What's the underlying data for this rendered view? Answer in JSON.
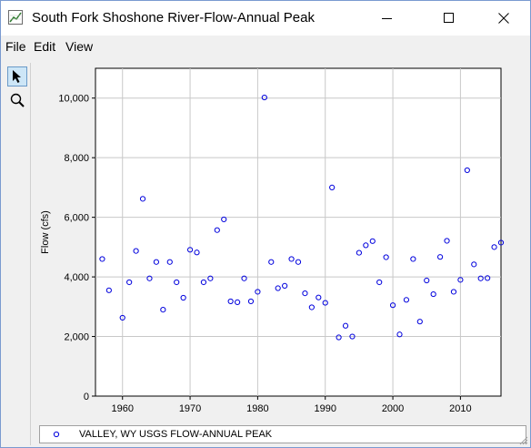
{
  "window": {
    "title": "South Fork Shoshone River-Flow-Annual Peak"
  },
  "menu": {
    "items": [
      "File",
      "Edit",
      "View"
    ]
  },
  "toolbar": {
    "tools": [
      {
        "icon": "select-pointer-icon",
        "active": true
      },
      {
        "icon": "zoom-magnifier-icon",
        "active": false
      }
    ]
  },
  "chart_data": {
    "type": "scatter",
    "title": "",
    "xlabel": "",
    "ylabel": "Flow (cfs)",
    "xlim": [
      1956,
      2016
    ],
    "ylim": [
      0,
      11000
    ],
    "xticks": [
      1960,
      1970,
      1980,
      1990,
      2000,
      2010
    ],
    "yticks": [
      2000,
      4000,
      6000,
      8000,
      10000
    ],
    "ytick_labels": [
      "2,000",
      "4,000",
      "6,000",
      "8,000",
      "10,000"
    ],
    "grid": true,
    "series": [
      {
        "name": "VALLEY, WY USGS FLOW-ANNUAL PEAK",
        "color": "#0000dd",
        "x": [
          1957,
          1958,
          1960,
          1961,
          1962,
          1963,
          1964,
          1965,
          1966,
          1967,
          1968,
          1969,
          1970,
          1971,
          1972,
          1973,
          1974,
          1975,
          1976,
          1977,
          1978,
          1979,
          1980,
          1981,
          1982,
          1983,
          1984,
          1985,
          1986,
          1987,
          1988,
          1989,
          1990,
          1991,
          1992,
          1993,
          1994,
          1995,
          1996,
          1997,
          1998,
          1999,
          2000,
          2001,
          2002,
          2003,
          2004,
          2005,
          2006,
          2007,
          2008,
          2009,
          2010,
          2011,
          2012,
          2013,
          2014,
          2015,
          2016
        ],
        "y": [
          4600,
          3550,
          2630,
          3820,
          4870,
          6620,
          3950,
          4500,
          2900,
          4500,
          3820,
          3300,
          4910,
          4820,
          3820,
          3950,
          5570,
          5930,
          3180,
          3150,
          3950,
          3180,
          3500,
          10020,
          4500,
          3620,
          3700,
          4600,
          4500,
          3450,
          2980,
          3310,
          3130,
          7000,
          1970,
          2360,
          2000,
          4810,
          5060,
          5200,
          3820,
          4660,
          3050,
          2070,
          3230,
          4600,
          2500,
          3880,
          3420,
          4670,
          5210,
          3500,
          3900,
          7580,
          4420,
          3950,
          3960,
          5000,
          5150
        ]
      }
    ]
  },
  "legend": {
    "label": "VALLEY, WY USGS FLOW-ANNUAL PEAK"
  }
}
